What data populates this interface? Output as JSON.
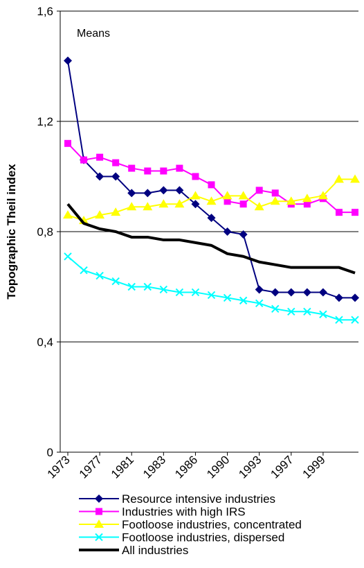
{
  "chart_data": {
    "type": "line",
    "title": "",
    "annotation": "Means",
    "xlabel": "",
    "ylabel": "Topographic Theil index",
    "ylim": [
      0,
      1.6
    ],
    "yticks": [
      "0",
      "0,4",
      "0,8",
      "1,2",
      "1,6"
    ],
    "ytick_values": [
      0,
      0.4,
      0.8,
      1.2,
      1.6
    ],
    "grid": "horizontal",
    "legend_position": "bottom",
    "x_tick_labels": [
      "1973",
      "1977",
      "1981",
      "1983",
      "1986",
      "1990",
      "1993",
      "1997",
      "1999"
    ],
    "x": [
      1973,
      1975,
      1977,
      1979,
      1981,
      1982,
      1983,
      1984,
      1986,
      1988,
      1990,
      1991,
      1993,
      1995,
      1997,
      1998,
      1999,
      2000,
      2001
    ],
    "series": [
      {
        "name": "Resource intensive industries",
        "color": "#000080",
        "marker": "diamond",
        "line_width": 2,
        "values": [
          1.42,
          1.06,
          1.0,
          1.0,
          0.94,
          0.94,
          0.95,
          0.95,
          0.9,
          0.85,
          0.8,
          0.79,
          0.59,
          0.58,
          0.58,
          0.58,
          0.58,
          0.56,
          0.56
        ]
      },
      {
        "name": "Industries with high IRS",
        "color": "#FF00FF",
        "marker": "square",
        "line_width": 2,
        "values": [
          1.12,
          1.06,
          1.07,
          1.05,
          1.03,
          1.02,
          1.02,
          1.03,
          1.0,
          0.97,
          0.91,
          0.9,
          0.95,
          0.94,
          0.9,
          0.9,
          0.92,
          0.87,
          0.87
        ]
      },
      {
        "name": "Footloose industries, concentrated",
        "color": "#FFFF00",
        "marker": "triangle",
        "line_width": 2,
        "values": [
          0.86,
          0.84,
          0.86,
          0.87,
          0.89,
          0.89,
          0.9,
          0.9,
          0.93,
          0.91,
          0.93,
          0.93,
          0.89,
          0.91,
          0.91,
          0.92,
          0.93,
          0.99,
          0.99
        ]
      },
      {
        "name": "Footloose industries, dispersed",
        "color": "#00FFFF",
        "marker": "x",
        "line_width": 2,
        "values": [
          0.71,
          0.66,
          0.64,
          0.62,
          0.6,
          0.6,
          0.59,
          0.58,
          0.58,
          0.57,
          0.56,
          0.55,
          0.54,
          0.52,
          0.51,
          0.51,
          0.5,
          0.48,
          0.48
        ]
      },
      {
        "name": "All industries",
        "color": "#000000",
        "marker": "none",
        "line_width": 4,
        "values": [
          0.9,
          0.83,
          0.81,
          0.8,
          0.78,
          0.78,
          0.77,
          0.77,
          0.76,
          0.75,
          0.72,
          0.71,
          0.69,
          0.68,
          0.67,
          0.67,
          0.67,
          0.67,
          0.65
        ]
      }
    ]
  }
}
